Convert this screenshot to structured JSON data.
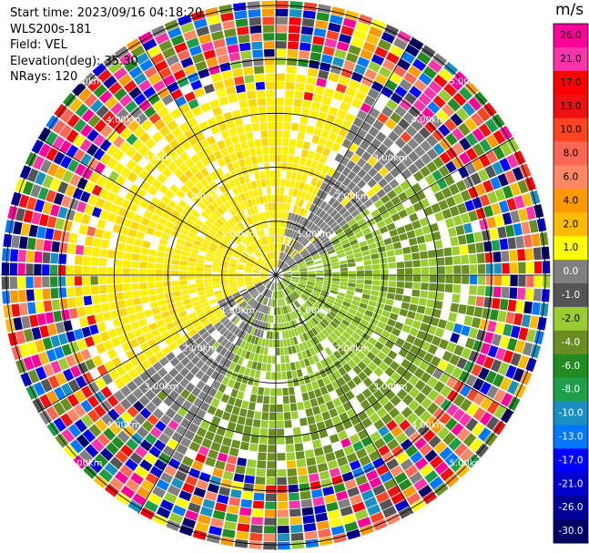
{
  "header": {
    "start_time": "Start time: 2023/09/16 04:18:20",
    "instrument": "WLS200s-181",
    "field": "Field: VEL",
    "elevation": "Elevation(deg): 35.30",
    "nrays": "NRays: 120"
  },
  "chart_data": {
    "type": "ppi-radar",
    "field": "VEL",
    "elevation_deg": 35.3,
    "nrays": 120,
    "range_rings_km": [
      1.0,
      2.0,
      3.0,
      4.0,
      5.0
    ],
    "range_ring_labels": [
      "1.00km",
      "2.00km",
      "3.00km",
      "4.00km",
      "5.00km"
    ],
    "unit": "m/s",
    "colorbar": {
      "ticks": [
        26.0,
        21.0,
        17.0,
        13.0,
        10.0,
        8.0,
        6.0,
        4.0,
        2.0,
        1.0,
        0.0,
        -1.0,
        -2.0,
        -4.0,
        -6.0,
        -8.0,
        -10.0,
        -13.0,
        -17.0,
        -21.0,
        -26.0,
        -30.0
      ],
      "tick_labels": [
        "26.0",
        "21.0",
        "17.0",
        "13.0",
        "10.0",
        "8.0",
        "6.0",
        "4.0",
        "2.0",
        "1.0",
        "0.0",
        "-1.0",
        "-2.0",
        "-4.0",
        "-6.0",
        "-8.0",
        "-10.0",
        "-13.0",
        "-17.0",
        "-21.0",
        "-26.0",
        "-30.0"
      ],
      "colors": [
        "#ff0099",
        "#ff33aa",
        "#ff0000",
        "#ee1111",
        "#ff4422",
        "#ff6655",
        "#ff8866",
        "#ff9900",
        "#ffbb00",
        "#ffff00",
        "#808080",
        "#555555",
        "#99cc33",
        "#6b8e23",
        "#228b22",
        "#1e9e4a",
        "#1a90c0",
        "#0077ff",
        "#0000ff",
        "#0000cc",
        "#000099",
        "#000066"
      ]
    },
    "pattern": {
      "near_field_zero_band_azimuths_deg": [
        40,
        220
      ],
      "positive_sector_azimuth_deg": 320,
      "negative_sector_azimuth_deg": 140,
      "valid_data_max_range_km": 3.9,
      "noise_beyond_range_km": 3.9
    }
  }
}
